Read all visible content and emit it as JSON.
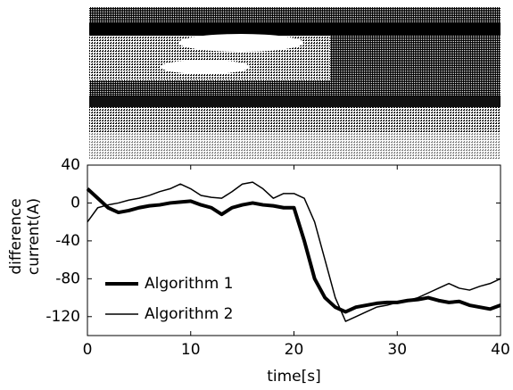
{
  "chart_data": {
    "type": "line",
    "xlabel": "time[s]",
    "ylabel": [
      "difference",
      "current(A)"
    ],
    "x": [
      0,
      1,
      2,
      3,
      4,
      5,
      6,
      7,
      8,
      9,
      10,
      11,
      12,
      13,
      14,
      15,
      16,
      17,
      18,
      19,
      20,
      21,
      22,
      23,
      24,
      25,
      26,
      27,
      28,
      29,
      30,
      31,
      32,
      33,
      34,
      35,
      36,
      37,
      38,
      39,
      40
    ],
    "series": [
      {
        "name": "Algorithm 1",
        "color": "#000000",
        "width": 4,
        "values": [
          15,
          5,
          -5,
          -10,
          -8,
          -5,
          -3,
          -2,
          0,
          1,
          2,
          -2,
          -5,
          -12,
          -5,
          -2,
          0,
          -2,
          -3,
          -5,
          -5,
          -40,
          -80,
          -100,
          -110,
          -115,
          -110,
          -108,
          -106,
          -105,
          -105,
          -103,
          -102,
          -100,
          -103,
          -105,
          -104,
          -108,
          -110,
          -112,
          -108
        ]
      },
      {
        "name": "Algorithm 2",
        "color": "#000000",
        "width": 1.5,
        "values": [
          -20,
          -5,
          -2,
          0,
          3,
          5,
          8,
          12,
          15,
          20,
          15,
          8,
          6,
          5,
          12,
          20,
          22,
          15,
          5,
          10,
          10,
          5,
          -20,
          -60,
          -100,
          -125,
          -120,
          -115,
          -110,
          -108,
          -105,
          -103,
          -100,
          -95,
          -90,
          -85,
          -90,
          -92,
          -88,
          -85,
          -80
        ]
      }
    ],
    "xlim": [
      0,
      40
    ],
    "xticks": [
      0,
      10,
      20,
      30,
      40
    ],
    "ylim": [
      -140,
      40
    ],
    "yticks": [
      40,
      0,
      -40,
      -80,
      -120
    ]
  }
}
